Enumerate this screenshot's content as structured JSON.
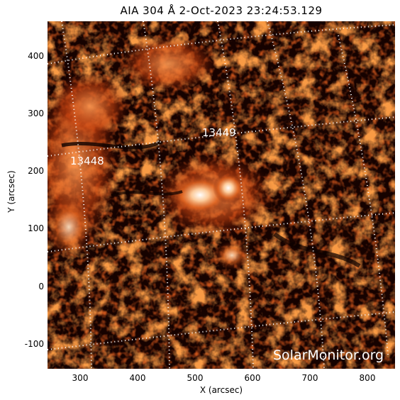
{
  "title": "AIA 304 Å  2-Oct-2023 23:24:53.129",
  "axes": {
    "xlabel": "X (arcsec)",
    "ylabel": "Y (arcsec)",
    "xticks": [
      "300",
      "400",
      "500",
      "600",
      "700",
      "800"
    ],
    "yticks": [
      "400",
      "300",
      "200",
      "100",
      "0",
      "-100"
    ]
  },
  "regions": [
    {
      "label": "13449"
    },
    {
      "label": "13448"
    }
  ],
  "credit": "SolarMonitor.org",
  "colors": {
    "background": "#160200",
    "grid": "#ffffff",
    "bright": "#ffffff",
    "mid": "#e0621e",
    "dark": "#5a0e02"
  }
}
